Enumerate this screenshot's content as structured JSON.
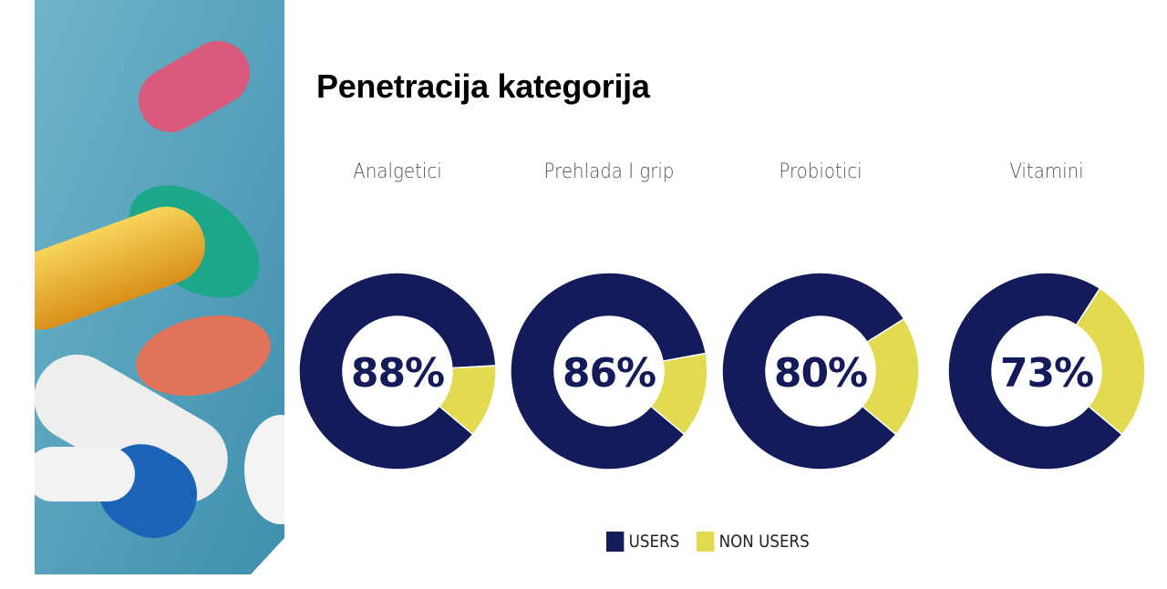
{
  "title": "Penetracija kategorija",
  "colors": {
    "users": "#131b5a",
    "non_users": "#e2da50"
  },
  "chart_data": {
    "type": "pie",
    "variant": "donut",
    "title": "Penetracija kategorija",
    "legend": {
      "position": "bottom",
      "entries": [
        "USERS",
        "NON USERS"
      ]
    },
    "series_names": [
      "USERS",
      "NON USERS"
    ],
    "charts": [
      {
        "category": "Analgetici",
        "users": 88,
        "non_users": 12,
        "label": "88%"
      },
      {
        "category": "Prehlada I grip",
        "users": 86,
        "non_users": 14,
        "label": "86%"
      },
      {
        "category": "Probiotici",
        "users": 80,
        "non_users": 20,
        "label": "80%"
      },
      {
        "category": "Vitamini",
        "users": 73,
        "non_users": 27,
        "label": "73%"
      }
    ]
  }
}
